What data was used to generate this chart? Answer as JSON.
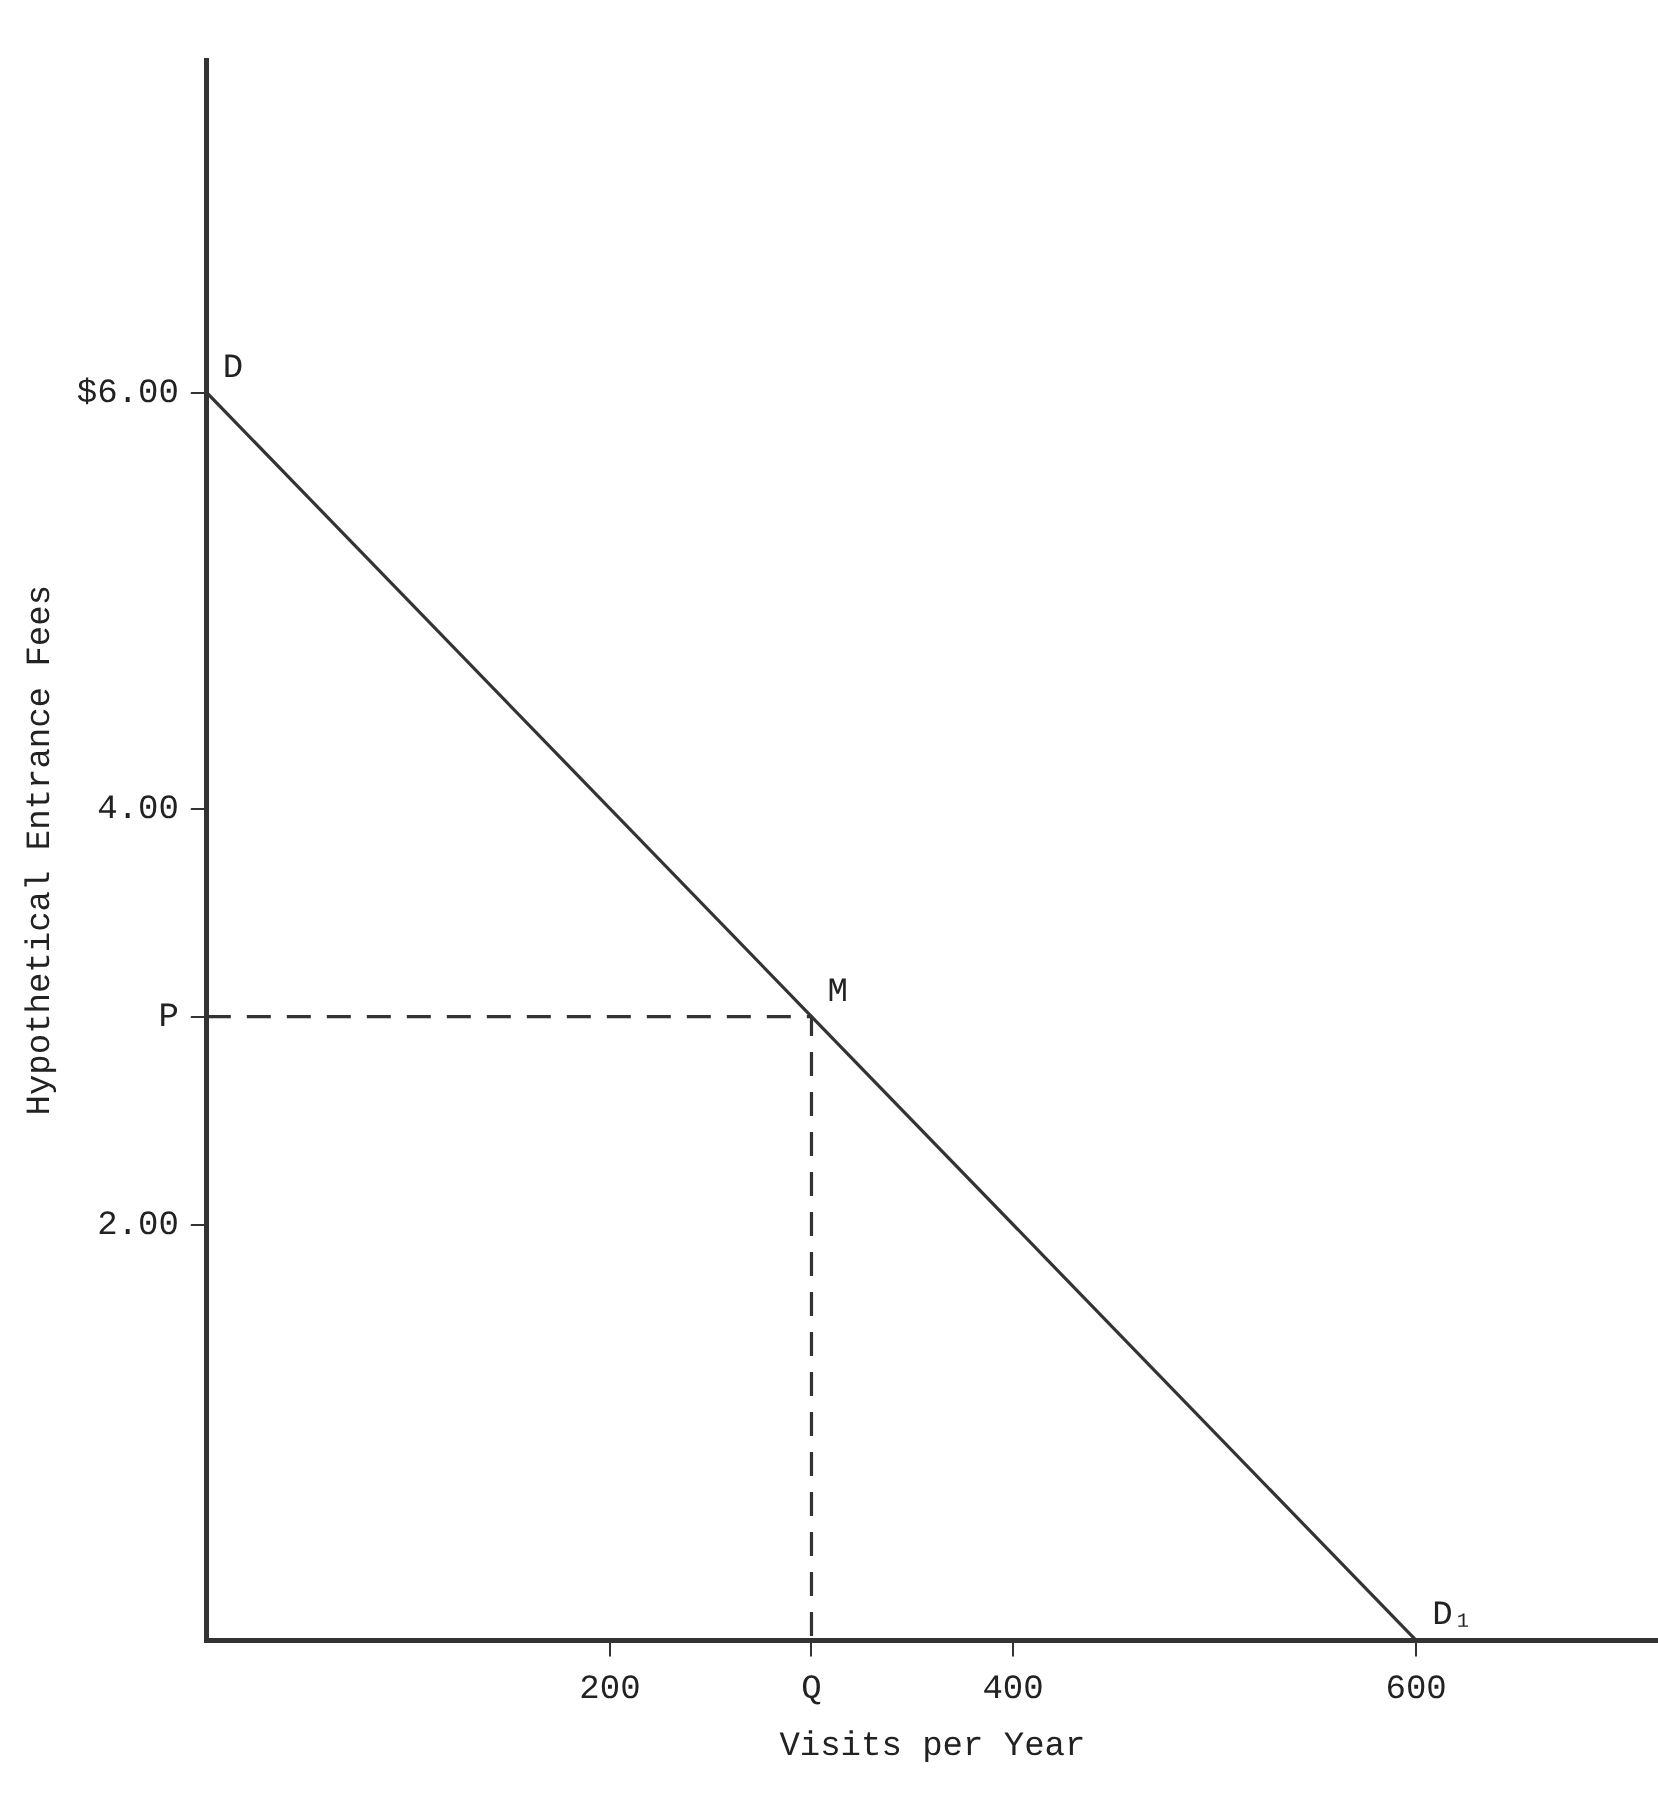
{
  "chart_data": {
    "type": "line",
    "xlabel": "Visits per Year",
    "ylabel": "Hypothetical Entrance Fees",
    "xlim": [
      0,
      720
    ],
    "ylim": [
      0,
      7.6
    ],
    "xticks": [
      200,
      {
        "value": 300,
        "label": "Q"
      },
      400,
      600
    ],
    "yticks": [
      {
        "value": 2,
        "label": "2.00"
      },
      {
        "value": 3,
        "label": "P"
      },
      {
        "value": 4,
        "label": "4.00"
      },
      {
        "value": 6,
        "label": "$6.00"
      }
    ],
    "marker": "none",
    "series": [
      {
        "type": "line",
        "color": "#333333",
        "line_style": "solid",
        "x": [
          0,
          600
        ],
        "values": [
          6,
          0
        ]
      },
      {
        "type": "line",
        "color": "#333333",
        "line_style": "dashed",
        "x": [
          0,
          300,
          300
        ],
        "values": [
          3,
          3,
          0
        ]
      }
    ],
    "annotations": [
      {
        "text": "D",
        "x": 0,
        "y": 6
      },
      {
        "text": "M",
        "x": 300,
        "y": 3
      },
      {
        "text": "D₁",
        "x": 600,
        "y": 0
      }
    ]
  }
}
